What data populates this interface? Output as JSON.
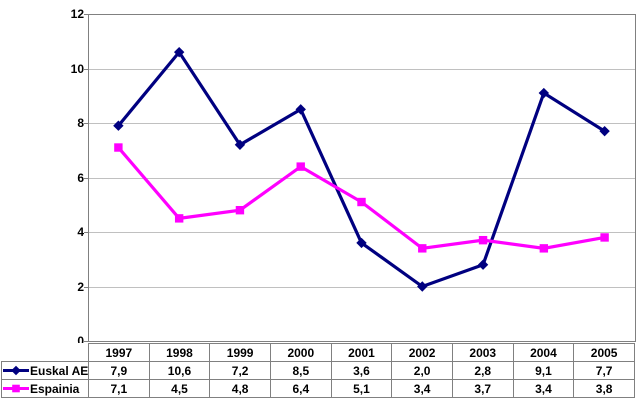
{
  "chart_data": {
    "type": "line",
    "title": "",
    "xlabel": "",
    "ylabel": "",
    "categories": [
      "1997",
      "1998",
      "1999",
      "2000",
      "2001",
      "2002",
      "2003",
      "2004",
      "2005"
    ],
    "series": [
      {
        "name": "Euskal AE",
        "values": [
          7.9,
          10.6,
          7.2,
          8.5,
          3.6,
          2.0,
          2.8,
          9.1,
          7.7
        ],
        "display_values": [
          "7,9",
          "10,6",
          "7,2",
          "8,5",
          "3,6",
          "2,0",
          "2,8",
          "9,1",
          "7,7"
        ],
        "color": "#000080",
        "marker": "diamond"
      },
      {
        "name": "Espainia",
        "values": [
          7.1,
          4.5,
          4.8,
          6.4,
          5.1,
          3.4,
          3.7,
          3.4,
          3.8
        ],
        "display_values": [
          "7,1",
          "4,5",
          "4,8",
          "6,4",
          "5,1",
          "3,4",
          "3,7",
          "3,4",
          "3,8"
        ],
        "color": "#FF00FF",
        "marker": "square"
      }
    ],
    "ylim": [
      0,
      12
    ],
    "yticks": [
      "0",
      "2",
      "4",
      "6",
      "8",
      "10",
      "12"
    ],
    "grid": true,
    "legend_position": "bottom-table-left",
    "colors": {
      "gridline": "#C0C0C0",
      "axis": "#808080",
      "table_border": "#808080",
      "text": "#000000",
      "background": "#FFFFFF"
    }
  }
}
